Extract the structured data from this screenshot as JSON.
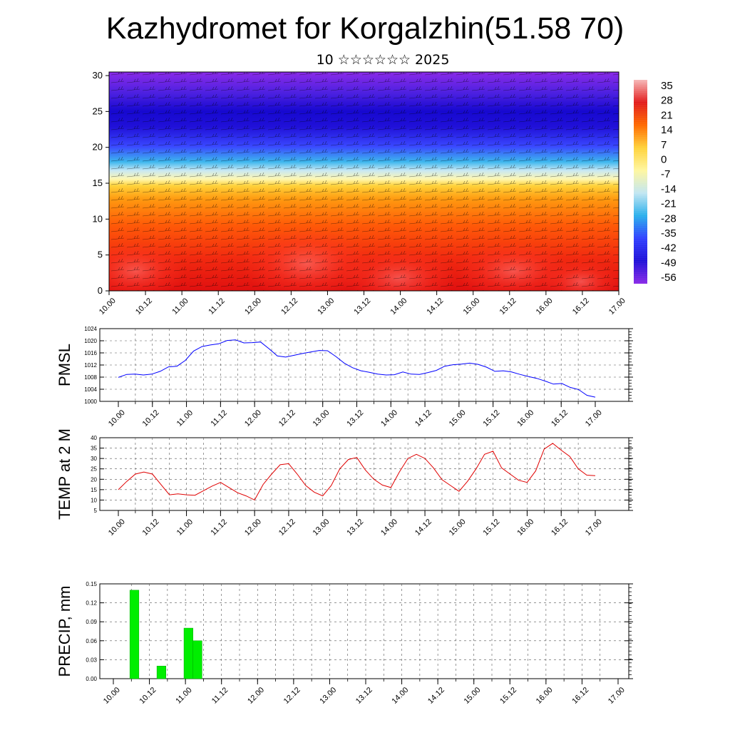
{
  "title": "Kazhydromet for Korgalzhin(51.58 70)",
  "subtitle": "10 ☆☆☆☆☆☆ 2025",
  "time_ticks": [
    "10.00",
    "10.12",
    "11.00",
    "11.12",
    "12.00",
    "12.12",
    "13.00",
    "13.12",
    "14.00",
    "14.12",
    "15.00",
    "15.12",
    "16.00",
    "16.12",
    "17.00"
  ],
  "chart_data": [
    {
      "type": "heatmap",
      "panel": "cross-section",
      "x": [
        "10.00",
        "10.12",
        "11.00",
        "11.12",
        "12.00",
        "12.12",
        "13.00",
        "13.12",
        "14.00",
        "14.12",
        "15.00",
        "15.12",
        "16.00",
        "16.12",
        "17.00"
      ],
      "y_ticks": [
        0,
        5,
        10,
        15,
        20,
        25,
        30
      ],
      "ylim": [
        0,
        30.5
      ],
      "colorbar_labels": [
        "35",
        "28",
        "21",
        "14",
        "7",
        "0",
        "-7",
        "-14",
        "-21",
        "-28",
        "-35",
        "-42",
        "-49",
        "-56"
      ],
      "colorbar_colors": [
        "#f6b7b7",
        "#e21c1c",
        "#ff6a00",
        "#ffd23a",
        "#fff7a0",
        "#c2e6f2",
        "#2bb0ec",
        "#3040ff",
        "#2010d8",
        "#8a2ae8"
      ],
      "overlay": "wind barbs"
    },
    {
      "type": "line",
      "panel": "pmsl",
      "ylabel": "PMSL",
      "ylim": [
        1000,
        1024
      ],
      "yticks": [
        "1000",
        "1004",
        "1008",
        "1012",
        "1016",
        "1020",
        "1024"
      ],
      "x_ticks": [
        "10.00",
        "10.12",
        "11.00",
        "11.12",
        "12.00",
        "12.12",
        "13.00",
        "13.12",
        "14.00",
        "14.12",
        "15.00",
        "15.12",
        "16.00",
        "16.12",
        "17.00"
      ],
      "color": "#0000ff",
      "series": [
        {
          "values": [
            1007.9,
            1008.9,
            1009.0,
            1008.7,
            1009.0,
            1009.9,
            1011.4,
            1011.6,
            1013.5,
            1016.6,
            1018.1,
            1018.6,
            1019.0,
            1020.1,
            1020.3,
            1019.3,
            1019.4,
            1019.6,
            1017.4,
            1015.0,
            1014.6,
            1015.2,
            1015.8,
            1016.3,
            1016.8,
            1016.7,
            1014.8,
            1012.6,
            1011.1,
            1010.1,
            1009.6,
            1009.0,
            1008.7,
            1008.8,
            1009.7,
            1009.0,
            1008.9,
            1009.5,
            1010.2,
            1011.6,
            1012.1,
            1012.3,
            1012.6,
            1012.2,
            1011.3,
            1009.9,
            1010.1,
            1009.7,
            1008.9,
            1008.2,
            1007.6,
            1006.7,
            1005.7,
            1005.9,
            1004.6,
            1003.9,
            1002.0,
            1001.4
          ]
        }
      ]
    },
    {
      "type": "line",
      "panel": "temp",
      "ylabel": "TEMP at 2 M",
      "ylim": [
        5,
        40
      ],
      "yticks": [
        "5",
        "10",
        "15",
        "20",
        "25",
        "30",
        "35",
        "40"
      ],
      "x_ticks": [
        "10.00",
        "10.12",
        "11.00",
        "11.12",
        "12.00",
        "12.12",
        "13.00",
        "13.12",
        "14.00",
        "14.12",
        "15.00",
        "15.12",
        "16.00",
        "16.12",
        "17.00"
      ],
      "color": "#e00000",
      "series": [
        {
          "values": [
            15,
            19,
            22.5,
            23.5,
            22.5,
            17.5,
            12.5,
            13,
            12.5,
            12.3,
            14.5,
            16.7,
            18.5,
            16,
            13.5,
            12,
            10,
            17.5,
            22.5,
            27,
            27.5,
            22.5,
            17,
            13.8,
            12,
            17,
            25,
            29.5,
            30.5,
            24.5,
            20,
            17.2,
            16,
            23.5,
            30,
            32,
            30,
            25.5,
            19.8,
            17,
            14.2,
            19,
            25,
            32,
            33.5,
            25.5,
            22.5,
            19.5,
            18.5,
            24,
            34.5,
            37.3,
            34,
            31,
            25,
            22,
            21.7
          ]
        }
      ]
    },
    {
      "type": "bar",
      "panel": "precip",
      "ylabel": "PRECIP, mm",
      "ylim": [
        0,
        0.15
      ],
      "yticks": [
        "0.00",
        "0.03",
        "0.06",
        "0.09",
        "0.12",
        "0.15"
      ],
      "x_ticks": [
        "10.00",
        "10.12",
        "11.00",
        "11.12",
        "12.00",
        "12.12",
        "13.00",
        "13.12",
        "14.00",
        "14.12",
        "15.00",
        "15.12",
        "16.00",
        "16.12",
        "17.00"
      ],
      "color": "#00ee00",
      "bars": [
        {
          "hour": 6,
          "value": 0.14
        },
        {
          "hour": 15,
          "value": 0.02
        },
        {
          "hour": 24,
          "value": 0.08
        },
        {
          "hour": 27,
          "value": 0.06
        }
      ]
    }
  ]
}
